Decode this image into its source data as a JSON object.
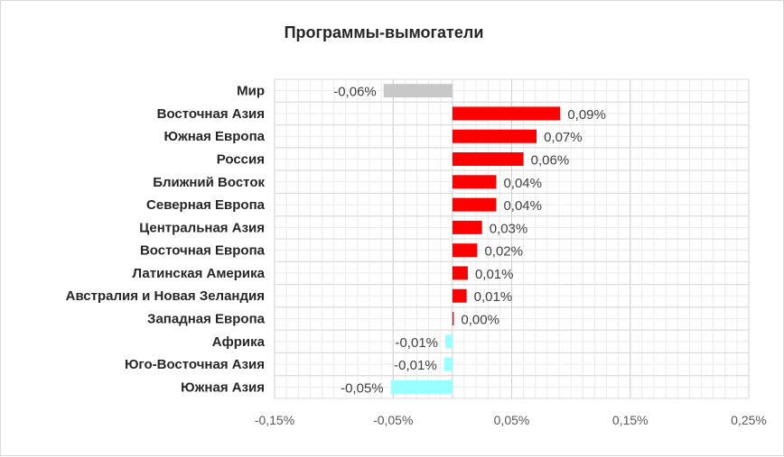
{
  "chart_data": {
    "type": "bar",
    "orientation": "horizontal",
    "title": "Программы-вымогатели",
    "xlabel": "",
    "ylabel": "",
    "categories": [
      "Мир",
      "Восточная Азия",
      "Южная Европа",
      "Россия",
      "Ближний Восток",
      "Северная Европа",
      "Центральная Азия",
      "Восточная Европа",
      "Латинская Америка",
      "Австралия и Новая Зеландия",
      "Западная Европа",
      "Африка",
      "Юго-Восточная Азия",
      "Южная Азия"
    ],
    "values": [
      -0.06,
      0.09,
      0.07,
      0.06,
      0.04,
      0.04,
      0.03,
      0.02,
      0.01,
      0.01,
      0.0,
      -0.01,
      -0.01,
      -0.05
    ],
    "exact_values": [
      -0.058,
      0.091,
      0.071,
      0.06,
      0.037,
      0.037,
      0.025,
      0.021,
      0.013,
      0.012,
      0.001,
      -0.006,
      -0.007,
      -0.052
    ],
    "value_labels": [
      "-0,06%",
      "0,09%",
      "0,07%",
      "0,06%",
      "0,04%",
      "0,04%",
      "0,03%",
      "0,02%",
      "0,01%",
      "0,01%",
      "0,00%",
      "-0,01%",
      "-0,01%",
      "-0,05%"
    ],
    "bar_colors": [
      "#c8c8c8",
      "#ff0000",
      "#ff0000",
      "#ff0000",
      "#ff0000",
      "#ff0000",
      "#ff0000",
      "#ff0000",
      "#ff0000",
      "#ff0000",
      "#ff0000",
      "#99ffff",
      "#99ffff",
      "#99ffff"
    ],
    "xlim": [
      -0.15,
      0.25
    ],
    "xticks": [
      -0.15,
      -0.05,
      0.05,
      0.15,
      0.25
    ],
    "xtick_labels": [
      "-0,15%",
      "-0,05%",
      "0,05%",
      "0,15%",
      "0,25%"
    ],
    "unit": "%",
    "grid": true,
    "legend": "none"
  }
}
